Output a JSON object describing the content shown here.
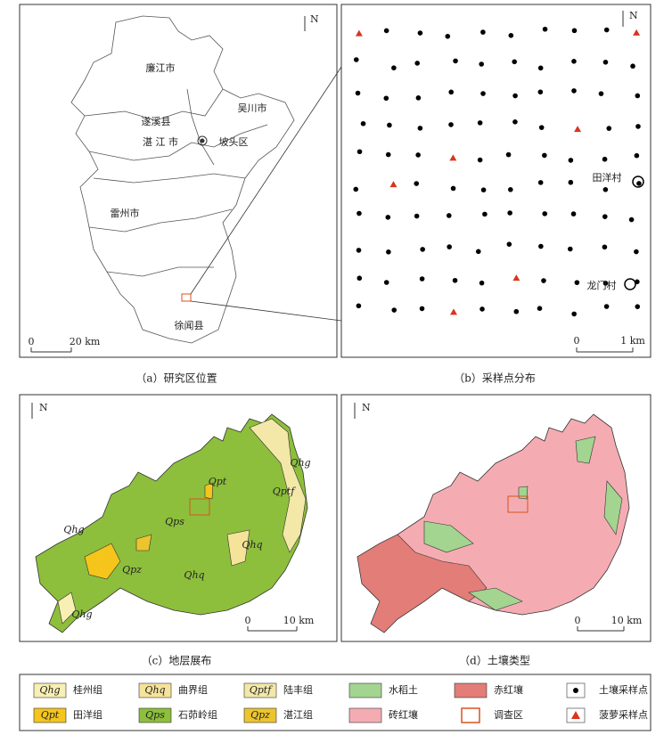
{
  "panels": [
    {
      "caption": "（a）研究区位置",
      "north": "N",
      "scale": [
        "0",
        "20 km"
      ],
      "labels": [
        "廉江市",
        "遂溪县",
        "吴川市",
        "湛 江 市",
        "坡头区",
        "雷州市",
        "徐闻县"
      ]
    },
    {
      "caption": "（b）采样点分布",
      "north": "N",
      "scale": [
        "0",
        "1 km"
      ],
      "labels": [
        "田洋村",
        "龙门村"
      ]
    },
    {
      "caption": "（c）地层展布",
      "north": "N",
      "scale": [
        "0",
        "10 km"
      ],
      "labels": [
        "Qhg",
        "Qpt",
        "Qptf",
        "Qps",
        "Qhg",
        "Qpz",
        "Qhq",
        "Qhq",
        "Qhg"
      ]
    },
    {
      "caption": "（d）土壤类型",
      "north": "N",
      "scale": [
        "0",
        "10 km"
      ],
      "labels": []
    }
  ],
  "legend": [
    {
      "code": "Qhg",
      "label": "桂州组",
      "color": "#f8efb4",
      "marker": "swatch"
    },
    {
      "code": "Qhq",
      "label": "曲界组",
      "color": "#f6e39a",
      "marker": "swatch"
    },
    {
      "code": "Qptf",
      "label": "陆丰组",
      "color": "#f3e8a8",
      "marker": "swatch"
    },
    {
      "label": "水稻土",
      "color": "#a3d490",
      "marker": "swatch"
    },
    {
      "label": "赤红壤",
      "color": "#e27d78",
      "marker": "swatch"
    },
    {
      "label": "土壤采样点",
      "color": "#000000",
      "marker": "dot"
    },
    {
      "code": "Qpt",
      "label": "田洋组",
      "color": "#f5c51c",
      "marker": "swatch"
    },
    {
      "code": "Qps",
      "label": "石茆岭组",
      "color": "#8dbf3c",
      "marker": "swatch"
    },
    {
      "code": "Qpz",
      "label": "湛江组",
      "color": "#ecc42e",
      "marker": "swatch"
    },
    {
      "label": "砖红壤",
      "color": "#f4acb2",
      "marker": "swatch"
    },
    {
      "label": "调查区",
      "color": "#d9531e",
      "marker": "square"
    },
    {
      "label": "菠萝采样点",
      "color": "#d9351e",
      "marker": "triangle"
    }
  ]
}
